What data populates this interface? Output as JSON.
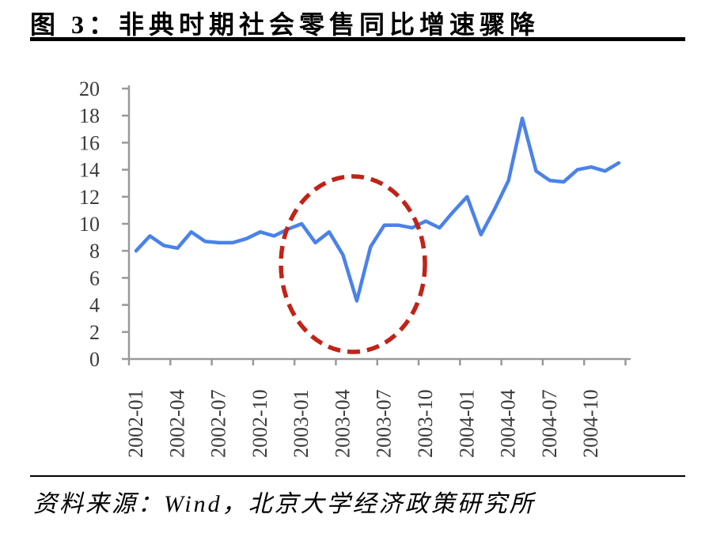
{
  "title": "图 3：非典时期社会零售同比增速骤降",
  "source": "资料来源：Wind，北京大学经济政策研究所",
  "colors": {
    "line": "#4a82e8",
    "annotation": "#c02418",
    "axis": "#999999",
    "tick_label": "#3c3c3c",
    "title_text": "#000000"
  },
  "chart_data": {
    "type": "line",
    "title": "图 3：非典时期社会零售同比增速骤降",
    "xlabel": "",
    "ylabel": "",
    "ylim": [
      0,
      20
    ],
    "y_ticks": [
      0,
      2,
      4,
      6,
      8,
      10,
      12,
      14,
      16,
      18,
      20
    ],
    "x_tick_every": 3,
    "x_tick_labels": [
      "2002-01",
      "2002-04",
      "2002-07",
      "2002-10",
      "2003-01",
      "2003-04",
      "2003-07",
      "2003-10",
      "2004-01",
      "2004-04",
      "2004-07",
      "2004-10"
    ],
    "grid": false,
    "legend": "none",
    "months": [
      "2002-01",
      "2002-02",
      "2002-03",
      "2002-04",
      "2002-05",
      "2002-06",
      "2002-07",
      "2002-08",
      "2002-09",
      "2002-10",
      "2002-11",
      "2002-12",
      "2003-01",
      "2003-02",
      "2003-03",
      "2003-04",
      "2003-05",
      "2003-06",
      "2003-07",
      "2003-08",
      "2003-09",
      "2003-10",
      "2003-11",
      "2003-12",
      "2004-01",
      "2004-02",
      "2004-03",
      "2004-04",
      "2004-05",
      "2004-06",
      "2004-07",
      "2004-08",
      "2004-09",
      "2004-10",
      "2004-11",
      "2004-12"
    ],
    "values": [
      8.0,
      9.1,
      8.4,
      8.2,
      9.4,
      8.7,
      8.6,
      8.6,
      8.9,
      9.4,
      9.1,
      9.6,
      10.0,
      8.6,
      9.4,
      7.7,
      4.3,
      8.3,
      9.9,
      9.9,
      9.7,
      10.2,
      9.7,
      10.9,
      12.0,
      9.2,
      11.1,
      13.2,
      17.8,
      13.9,
      13.2,
      13.1,
      14.0,
      14.2,
      13.9,
      14.5
    ],
    "annotation": {
      "shape": "dashed-ellipse",
      "centered_on": "2003-05",
      "highlights": "SARS-period dip"
    }
  }
}
